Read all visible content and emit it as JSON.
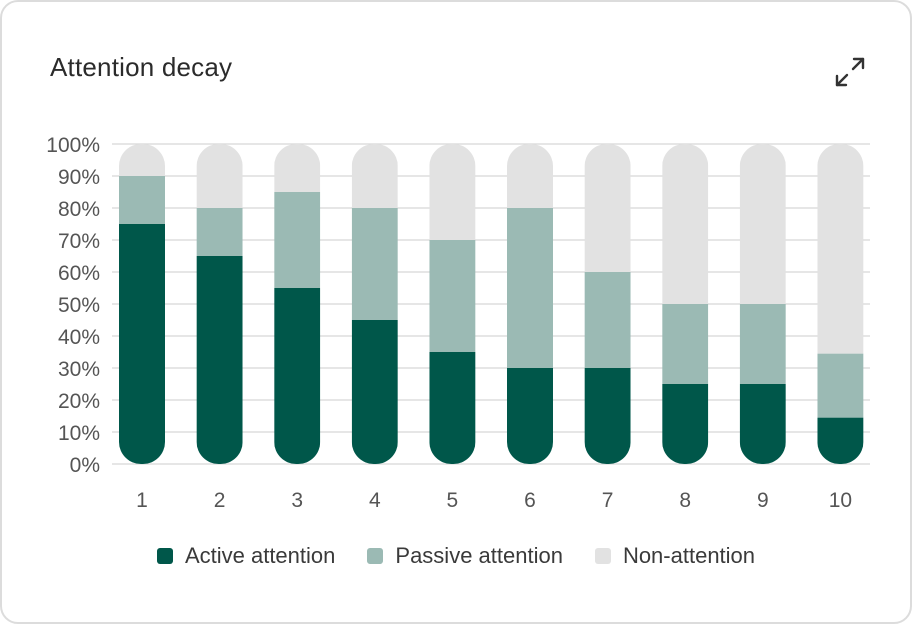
{
  "card": {
    "title": "Attention decay",
    "expand_icon": "expand-arrows-icon"
  },
  "colors": {
    "active": "#00574a",
    "passive": "#9bbab4",
    "non": "#e2e2e2",
    "grid": "#d6d6d6",
    "tick": "#555555"
  },
  "chart_data": {
    "type": "bar",
    "stacked": true,
    "categories": [
      "1",
      "2",
      "3",
      "4",
      "5",
      "6",
      "7",
      "8",
      "9",
      "10"
    ],
    "series": [
      {
        "name": "Active attention",
        "values": [
          75,
          65,
          55,
          45,
          35,
          30,
          30,
          25,
          25,
          14.5
        ]
      },
      {
        "name": "Passive attention",
        "values": [
          15,
          15,
          30,
          35,
          35,
          50,
          30,
          25,
          25,
          20
        ]
      },
      {
        "name": "Non-attention",
        "values": [
          10,
          20,
          15,
          20,
          30,
          20,
          40,
          50,
          50,
          65.5
        ]
      }
    ],
    "y_ticks": [
      "0%",
      "10%",
      "20%",
      "30%",
      "40%",
      "50%",
      "60%",
      "70%",
      "80%",
      "90%",
      "100%"
    ],
    "ylim": [
      0,
      100
    ],
    "grid": true,
    "legend_position": "bottom"
  }
}
